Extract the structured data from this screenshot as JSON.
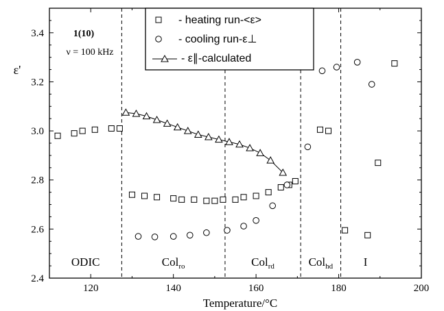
{
  "chart_data": {
    "type": "scatter",
    "xlabel": "Temperature/°C",
    "ylabel": "ε'",
    "xlim": [
      110,
      200
    ],
    "ylim": [
      2.4,
      3.5
    ],
    "x_ticks": [
      "120",
      "140",
      "160",
      "180",
      "200"
    ],
    "y_ticks": [
      "2.4",
      "2.6",
      "2.8",
      "3.0",
      "3.2",
      "3.4"
    ],
    "annotation": {
      "compound": "1(10)",
      "frequency": "ν = 100 kHz"
    },
    "legend": {
      "position": "top-center"
    },
    "phase_boundaries": [
      127.5,
      152.5,
      170.8,
      180.5
    ],
    "phase_labels": [
      {
        "text": "ODIC",
        "sub": ""
      },
      {
        "text": "Col",
        "sub": "ro"
      },
      {
        "text": "Col",
        "sub": "rd"
      },
      {
        "text": "Col",
        "sub": "hd"
      },
      {
        "text": "I",
        "sub": ""
      }
    ],
    "series": [
      {
        "name": "- heating run-<ε>",
        "marker": "square",
        "points": [
          [
            112,
            2.98
          ],
          [
            116,
            2.99
          ],
          [
            118,
            3.0
          ],
          [
            121,
            3.005
          ],
          [
            125,
            3.01
          ],
          [
            127,
            3.01
          ],
          [
            130,
            2.74
          ],
          [
            133,
            2.735
          ],
          [
            136,
            2.73
          ],
          [
            140,
            2.725
          ],
          [
            142,
            2.72
          ],
          [
            145,
            2.72
          ],
          [
            148,
            2.715
          ],
          [
            150,
            2.715
          ],
          [
            152,
            2.72
          ],
          [
            155,
            2.72
          ],
          [
            157,
            2.73
          ],
          [
            160,
            2.735
          ],
          [
            163,
            2.75
          ],
          [
            166,
            2.77
          ],
          [
            168,
            2.78
          ],
          [
            169.5,
            2.795
          ],
          [
            175.5,
            3.005
          ],
          [
            177.5,
            3.0
          ],
          [
            181.5,
            2.595
          ],
          [
            187,
            2.575
          ],
          [
            189.5,
            2.87
          ],
          [
            193.5,
            3.275
          ]
        ]
      },
      {
        "name": "- cooling run-ε⊥",
        "marker": "circle",
        "points": [
          [
            131.5,
            2.57
          ],
          [
            135.5,
            2.568
          ],
          [
            140,
            2.57
          ],
          [
            144,
            2.575
          ],
          [
            148,
            2.585
          ],
          [
            153,
            2.595
          ],
          [
            157,
            2.612
          ],
          [
            160,
            2.635
          ],
          [
            164,
            2.695
          ],
          [
            167.5,
            2.78
          ],
          [
            172.5,
            2.935
          ],
          [
            176,
            3.245
          ],
          [
            179.5,
            3.26
          ],
          [
            184.5,
            3.28
          ],
          [
            188,
            3.19
          ]
        ]
      },
      {
        "name": "- ε∥-calculated",
        "marker": "triangle",
        "line": true,
        "points": [
          [
            128.5,
            3.075
          ],
          [
            131,
            3.07
          ],
          [
            133.5,
            3.06
          ],
          [
            136,
            3.045
          ],
          [
            138.5,
            3.03
          ],
          [
            141,
            3.015
          ],
          [
            143.5,
            3.0
          ],
          [
            146,
            2.985
          ],
          [
            148.5,
            2.975
          ],
          [
            151,
            2.965
          ],
          [
            153.5,
            2.955
          ],
          [
            156,
            2.945
          ],
          [
            158.5,
            2.93
          ],
          [
            161,
            2.91
          ],
          [
            163.5,
            2.88
          ],
          [
            166.5,
            2.83
          ]
        ]
      }
    ]
  }
}
